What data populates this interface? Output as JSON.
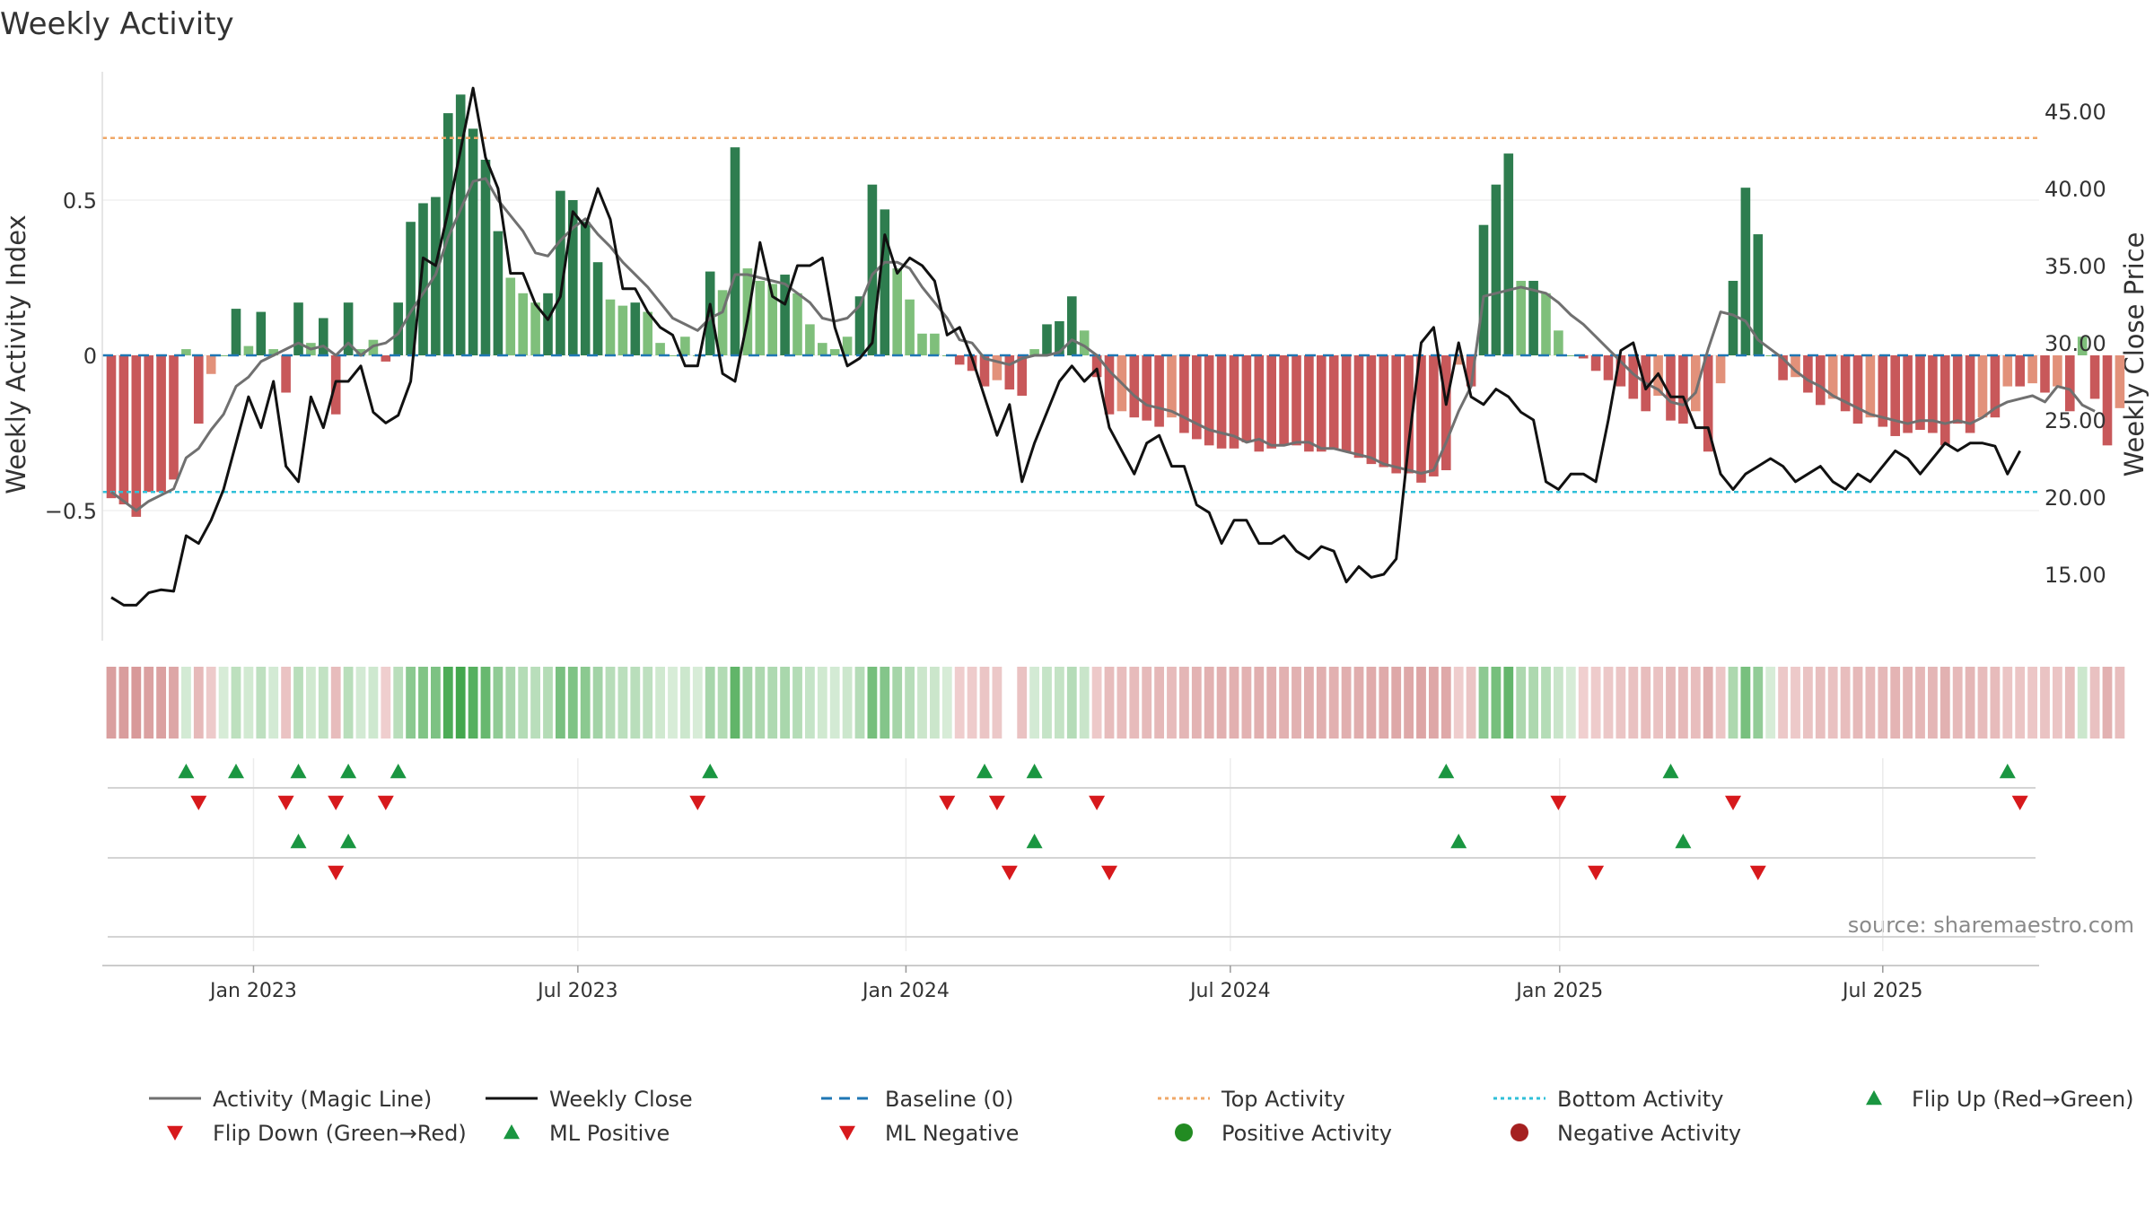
{
  "chart_data": {
    "type": "bar",
    "title": "Weekly Activity",
    "ylabel": "Weekly Activity Index",
    "y2label": "Weekly Close Price",
    "source": "source: sharemaestro.com",
    "ylim": [
      -0.92,
      0.9
    ],
    "y2lim": [
      11.5,
      48.5
    ],
    "yticks": [
      {
        "v": 0.5,
        "label": "0.5"
      },
      {
        "v": 0,
        "label": "0"
      },
      {
        "v": -0.5,
        "label": "−0.5"
      }
    ],
    "y2ticks": [
      {
        "v": 45,
        "label": "45.00"
      },
      {
        "v": 40,
        "label": "40.00"
      },
      {
        "v": 35,
        "label": "35.00"
      },
      {
        "v": 30,
        "label": "30.00"
      },
      {
        "v": 25,
        "label": "25.00"
      },
      {
        "v": 20,
        "label": "20.00"
      },
      {
        "v": 15,
        "label": "15.00"
      }
    ],
    "xticks": [
      {
        "w": 11.4,
        "label": "Jan 2023"
      },
      {
        "w": 37.4,
        "label": "Jul 2023"
      },
      {
        "w": 63.7,
        "label": "Jan 2024"
      },
      {
        "w": 89.7,
        "label": "Jul 2024"
      },
      {
        "w": 116.1,
        "label": "Jan 2025"
      },
      {
        "w": 142.0,
        "label": "Jul 2025"
      }
    ],
    "top_activity": 0.7,
    "bottom_activity": -0.44,
    "colors": {
      "strong_pos": "#2e7d4f",
      "weak_pos": "#7fbf7b",
      "strong_neg": "#c8585a",
      "weak_neg": "#e2917a",
      "magic": "#707070",
      "close": "#111111",
      "baseline": "#1f77b4",
      "top": "#f0a868",
      "bottom": "#30c0d8",
      "up": "#1a9641",
      "down": "#d7191c"
    },
    "series": [
      {
        "name": "Activity Index",
        "values": [
          -0.46,
          -0.48,
          -0.52,
          -0.44,
          -0.44,
          -0.4,
          0.02,
          -0.22,
          -0.06,
          0.0,
          0.15,
          0.03,
          0.14,
          0.02,
          -0.12,
          0.17,
          0.04,
          0.12,
          -0.19,
          0.17,
          0.02,
          0.05,
          -0.02,
          0.17,
          0.43,
          0.49,
          0.51,
          0.78,
          0.84,
          0.73,
          0.63,
          0.4,
          0.25,
          0.2,
          0.17,
          0.2,
          0.53,
          0.5,
          0.43,
          0.3,
          0.18,
          0.16,
          0.17,
          0.14,
          0.04,
          0.0,
          0.06,
          0.0,
          0.27,
          0.21,
          0.67,
          0.28,
          0.24,
          0.23,
          0.26,
          0.2,
          0.1,
          0.04,
          0.02,
          0.06,
          0.19,
          0.55,
          0.47,
          0.28,
          0.18,
          0.07,
          0.07,
          0.0,
          -0.03,
          -0.05,
          -0.1,
          -0.08,
          -0.11,
          -0.13,
          0.02,
          0.1,
          0.11,
          0.19,
          0.08,
          -0.07,
          -0.19,
          -0.18,
          -0.2,
          -0.21,
          -0.23,
          -0.2,
          -0.25,
          -0.27,
          -0.29,
          -0.3,
          -0.3,
          -0.28,
          -0.31,
          -0.3,
          -0.29,
          -0.29,
          -0.31,
          -0.31,
          -0.3,
          -0.31,
          -0.33,
          -0.35,
          -0.36,
          -0.38,
          -0.38,
          -0.41,
          -0.39,
          -0.37,
          -0.03,
          -0.1,
          0.42,
          0.55,
          0.65,
          0.24,
          0.24,
          0.2,
          0.08,
          0.0,
          -0.01,
          -0.05,
          -0.08,
          -0.1,
          -0.14,
          -0.18,
          -0.13,
          -0.21,
          -0.22,
          -0.18,
          -0.31,
          -0.09,
          0.24,
          0.54,
          0.39,
          0.0,
          -0.08,
          -0.07,
          -0.12,
          -0.16,
          -0.14,
          -0.18,
          -0.22,
          -0.2,
          -0.23,
          -0.26,
          -0.25,
          -0.24,
          -0.25,
          -0.29,
          -0.22,
          -0.25,
          -0.2,
          -0.2,
          -0.1,
          -0.1,
          -0.09,
          -0.12,
          -0.1,
          -0.18,
          0.06,
          -0.14,
          -0.29,
          -0.17
        ]
      },
      {
        "name": "Activity (Magic Line)",
        "values": [
          -0.44,
          -0.47,
          -0.5,
          -0.47,
          -0.45,
          -0.43,
          -0.33,
          -0.3,
          -0.24,
          -0.19,
          -0.1,
          -0.07,
          -0.02,
          0.0,
          0.02,
          0.04,
          0.02,
          0.03,
          0.0,
          0.04,
          0.0,
          0.03,
          0.04,
          0.07,
          0.14,
          0.2,
          0.26,
          0.38,
          0.47,
          0.56,
          0.57,
          0.5,
          0.45,
          0.4,
          0.33,
          0.32,
          0.37,
          0.41,
          0.44,
          0.39,
          0.35,
          0.3,
          0.26,
          0.22,
          0.17,
          0.12,
          0.1,
          0.08,
          0.12,
          0.14,
          0.26,
          0.26,
          0.25,
          0.24,
          0.23,
          0.2,
          0.17,
          0.12,
          0.11,
          0.12,
          0.16,
          0.26,
          0.3,
          0.3,
          0.28,
          0.22,
          0.17,
          0.12,
          0.05,
          0.04,
          -0.01,
          -0.02,
          -0.03,
          -0.01,
          0.0,
          0.0,
          0.01,
          0.05,
          0.03,
          0.0,
          -0.05,
          -0.09,
          -0.13,
          -0.16,
          -0.17,
          -0.18,
          -0.2,
          -0.22,
          -0.24,
          -0.25,
          -0.26,
          -0.28,
          -0.27,
          -0.29,
          -0.29,
          -0.28,
          -0.28,
          -0.3,
          -0.3,
          -0.31,
          -0.32,
          -0.33,
          -0.35,
          -0.36,
          -0.37,
          -0.38,
          -0.37,
          -0.28,
          -0.18,
          -0.1,
          0.19,
          0.2,
          0.21,
          0.22,
          0.21,
          0.2,
          0.17,
          0.13,
          0.1,
          0.06,
          0.02,
          -0.02,
          -0.06,
          -0.09,
          -0.11,
          -0.15,
          -0.16,
          -0.12,
          0.02,
          0.14,
          0.13,
          0.11,
          0.05,
          0.02,
          -0.01,
          -0.05,
          -0.08,
          -0.1,
          -0.13,
          -0.15,
          -0.17,
          -0.19,
          -0.2,
          -0.21,
          -0.22,
          -0.21,
          -0.21,
          -0.22,
          -0.21,
          -0.22,
          -0.2,
          -0.17,
          -0.15,
          -0.14,
          -0.13,
          -0.15,
          -0.1,
          -0.11,
          -0.16,
          -0.18
        ]
      },
      {
        "name": "Weekly Close",
        "values": [
          13.5,
          13.0,
          13.0,
          13.8,
          14.0,
          13.9,
          17.5,
          17.0,
          18.5,
          20.5,
          23.5,
          26.5,
          24.5,
          27.5,
          22.0,
          21.0,
          26.5,
          24.5,
          27.5,
          27.5,
          28.5,
          25.5,
          24.8,
          25.3,
          27.5,
          35.5,
          35.0,
          38.5,
          42.5,
          46.5,
          42.0,
          40.0,
          34.5,
          34.5,
          32.5,
          31.5,
          33.0,
          38.5,
          37.5,
          40.0,
          38.0,
          33.5,
          33.5,
          32.0,
          31.0,
          30.5,
          28.5,
          28.5,
          32.5,
          28.0,
          27.5,
          31.5,
          36.5,
          33.0,
          32.5,
          35.0,
          35.0,
          35.5,
          31.0,
          28.5,
          29.0,
          30.0,
          37.0,
          34.5,
          35.5,
          35.0,
          34.0,
          30.5,
          31.0,
          29.0,
          26.5,
          24.0,
          26.0,
          21.0,
          23.5,
          25.5,
          27.5,
          28.5,
          27.5,
          28.3,
          24.5,
          23.0,
          21.5,
          23.5,
          24.0,
          22.0,
          22.0,
          19.5,
          19.0,
          17.0,
          18.5,
          18.5,
          17.0,
          17.0,
          17.5,
          16.5,
          16.0,
          16.8,
          16.5,
          14.5,
          15.5,
          14.8,
          15.0,
          16.0,
          23.5,
          30.0,
          31.0,
          26.0,
          30.0,
          26.5,
          26.0,
          27.0,
          26.5,
          25.5,
          25.0,
          21.0,
          20.5,
          21.5,
          21.5,
          21.0,
          25.0,
          29.5,
          30.0,
          27.0,
          28.0,
          26.5,
          26.5,
          24.5,
          24.5,
          21.5,
          20.5,
          21.5,
          22.0,
          22.5,
          22.0,
          21.0,
          21.5,
          22.0,
          21.0,
          20.5,
          21.5,
          21.0,
          22.0,
          23.0,
          22.5,
          21.5,
          22.5,
          23.5,
          23.0,
          23.5,
          23.5,
          23.3,
          21.5,
          23.0
        ]
      }
    ],
    "heat_strip": {
      "gap_week": 72
    },
    "rows": [
      {
        "name": "Flip Up (Red→Green)",
        "weeks": [
          6,
          10,
          15,
          19,
          23,
          48,
          70,
          74,
          107,
          125,
          152
        ]
      },
      {
        "name": "Flip Down (Green→Red)",
        "weeks": [
          7,
          14,
          18,
          22,
          47,
          67,
          71,
          79,
          116,
          130,
          153
        ]
      },
      {
        "name": "ML Positive",
        "weeks": [
          15,
          19,
          74,
          108,
          126
        ]
      },
      {
        "name": "ML Negative",
        "weeks": [
          18,
          72,
          80,
          119,
          132
        ]
      }
    ],
    "legend": [
      {
        "type": "line",
        "label": "Activity (Magic Line)",
        "color": "#707070",
        "dash": ""
      },
      {
        "type": "line",
        "label": "Weekly Close",
        "color": "#111111",
        "dash": ""
      },
      {
        "type": "line",
        "label": "Baseline (0)",
        "color": "#1f77b4",
        "dash": "12,8"
      },
      {
        "type": "line",
        "label": "Top Activity",
        "color": "#f0a868",
        "dash": "4,4"
      },
      {
        "type": "line",
        "label": "Bottom Activity",
        "color": "#30c0d8",
        "dash": "4,4"
      },
      {
        "type": "up",
        "label": "Flip Up (Red→Green)",
        "color": "#1a9641"
      },
      {
        "type": "down",
        "label": "Flip Down (Green→Red)",
        "color": "#d7191c"
      },
      {
        "type": "up",
        "label": "ML Positive",
        "color": "#1a9641"
      },
      {
        "type": "down",
        "label": "ML Negative",
        "color": "#d7191c"
      },
      {
        "type": "dot",
        "label": "Positive Activity",
        "color": "#228b22"
      },
      {
        "type": "dot",
        "label": "Negative Activity",
        "color": "#a52020"
      }
    ]
  }
}
